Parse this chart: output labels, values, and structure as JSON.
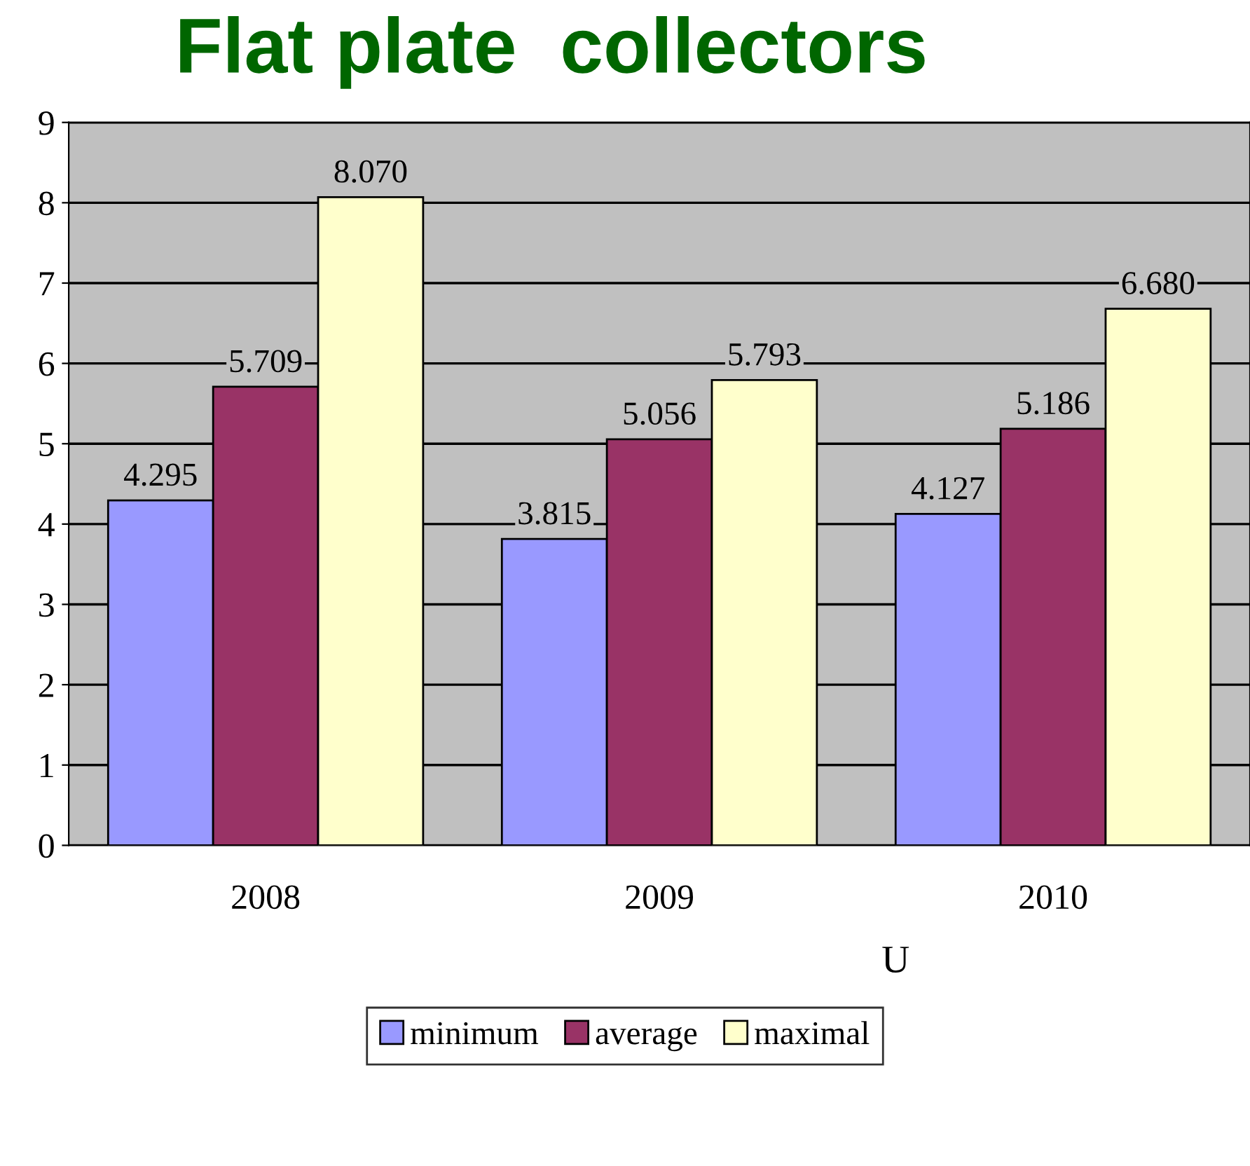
{
  "chart_data": {
    "type": "bar",
    "title": "Flat plate  collectors",
    "xlabel": "U",
    "categories": [
      "2008",
      "2009",
      "2010"
    ],
    "series": [
      {
        "name": "minimum",
        "color": "#9999ff",
        "values": [
          4.295,
          3.815,
          4.127
        ],
        "value_labels": [
          "4.295",
          "3.815",
          "4.127"
        ]
      },
      {
        "name": "average",
        "color": "#993366",
        "values": [
          5.709,
          5.056,
          5.186
        ],
        "value_labels": [
          "5.709",
          "5.056",
          "5.186"
        ]
      },
      {
        "name": "maximal",
        "color": "#ffffcc",
        "values": [
          8.07,
          5.793,
          6.68
        ],
        "value_labels": [
          "8.070",
          "5.793",
          "6.680"
        ]
      }
    ],
    "ylim": [
      0,
      9
    ],
    "yticks": [
      0,
      1,
      2,
      3,
      4,
      5,
      6,
      7,
      8,
      9
    ],
    "grid": "y",
    "legend": "bottom"
  }
}
